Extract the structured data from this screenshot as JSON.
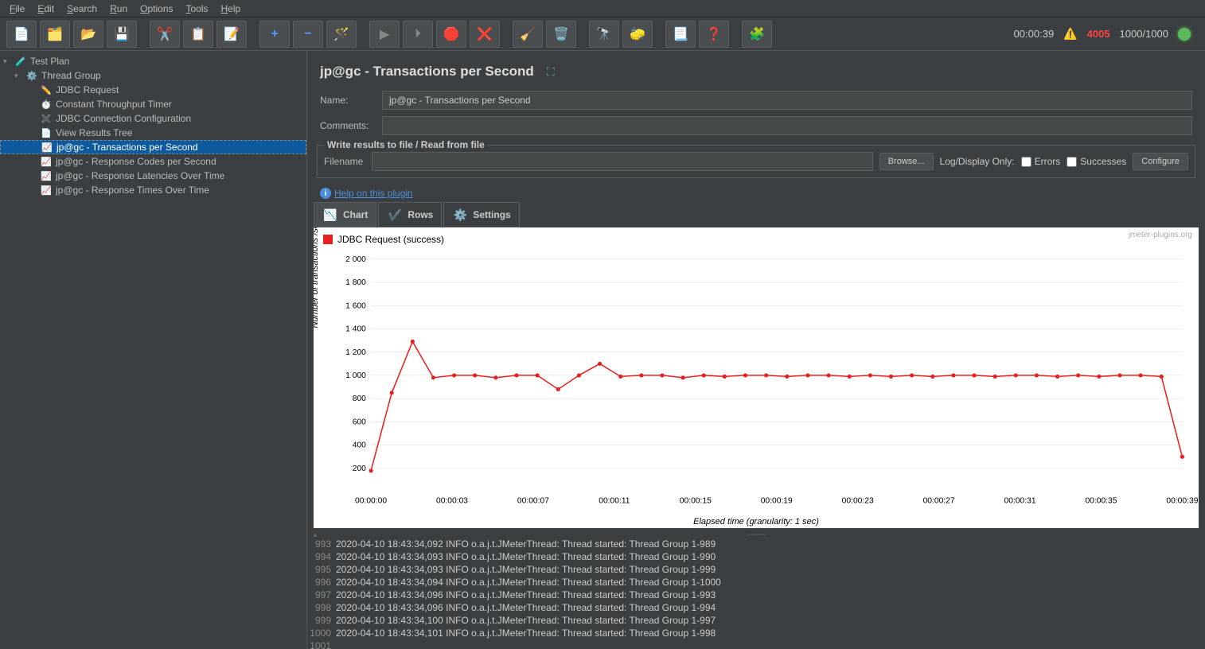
{
  "menu": [
    "File",
    "Edit",
    "Search",
    "Run",
    "Options",
    "Tools",
    "Help"
  ],
  "status": {
    "time": "00:00:39",
    "errors": "4005",
    "threads": "1000/1000"
  },
  "tree": [
    {
      "indent": 0,
      "label": "Test Plan",
      "icon": "🧪",
      "arrow": "▾"
    },
    {
      "indent": 1,
      "label": "Thread Group",
      "icon": "⚙️",
      "arrow": "▾"
    },
    {
      "indent": 2,
      "label": "JDBC Request",
      "icon": "✏️"
    },
    {
      "indent": 2,
      "label": "Constant Throughput Timer",
      "icon": "⏱️"
    },
    {
      "indent": 2,
      "label": "JDBC Connection Configuration",
      "icon": "✖️"
    },
    {
      "indent": 2,
      "label": "View Results Tree",
      "icon": "📄"
    },
    {
      "indent": 2,
      "label": "jp@gc - Transactions per Second",
      "icon": "📈",
      "selected": true
    },
    {
      "indent": 2,
      "label": "jp@gc - Response Codes per Second",
      "icon": "📈"
    },
    {
      "indent": 2,
      "label": "jp@gc - Response Latencies Over Time",
      "icon": "📈"
    },
    {
      "indent": 2,
      "label": "jp@gc - Response Times Over Time",
      "icon": "📈"
    }
  ],
  "panel": {
    "title": "jp@gc - Transactions per Second",
    "name_label": "Name:",
    "name_value": "jp@gc - Transactions per Second",
    "comments_label": "Comments:",
    "fieldset_legend": "Write results to file / Read from file",
    "filename_label": "Filename",
    "browse": "Browse...",
    "logdisplay": "Log/Display Only:",
    "errors_cb": "Errors",
    "success_cb": "Successes",
    "configure": "Configure",
    "help": "Help on this plugin"
  },
  "tabs": [
    {
      "label": "Chart",
      "icon": "📉",
      "active": true
    },
    {
      "label": "Rows",
      "icon": "✔️"
    },
    {
      "label": "Settings",
      "icon": "⚙️"
    }
  ],
  "chart": {
    "legend": "JDBC Request (success)",
    "attrib": "jmeter-plugins.org",
    "ylabel": "Number of transactions /sec",
    "xlabel": "Elapsed time (granularity: 1 sec)",
    "ymin": 0,
    "ymax": 2000,
    "ystep": 200,
    "yticks": [
      "2 000",
      "1 800",
      "1 600",
      "1 400",
      "1 200",
      "1 000",
      "800",
      "600",
      "400",
      "200"
    ],
    "xticks": [
      "00:00:00",
      "00:00:03",
      "00:00:07",
      "00:00:11",
      "00:00:15",
      "00:00:19",
      "00:00:23",
      "00:00:27",
      "00:00:31",
      "00:00:35",
      "00:00:39"
    ],
    "series_color": "#e62020",
    "data": [
      [
        0,
        180
      ],
      [
        1,
        850
      ],
      [
        2,
        1290
      ],
      [
        3,
        980
      ],
      [
        4,
        1000
      ],
      [
        5,
        1000
      ],
      [
        6,
        980
      ],
      [
        7,
        1000
      ],
      [
        8,
        1000
      ],
      [
        9,
        880
      ],
      [
        10,
        1000
      ],
      [
        11,
        1100
      ],
      [
        12,
        990
      ],
      [
        13,
        1000
      ],
      [
        14,
        1000
      ],
      [
        15,
        980
      ],
      [
        16,
        1000
      ],
      [
        17,
        990
      ],
      [
        18,
        1000
      ],
      [
        19,
        1000
      ],
      [
        20,
        990
      ],
      [
        21,
        1000
      ],
      [
        22,
        1000
      ],
      [
        23,
        990
      ],
      [
        24,
        1000
      ],
      [
        25,
        990
      ],
      [
        26,
        1000
      ],
      [
        27,
        990
      ],
      [
        28,
        1000
      ],
      [
        29,
        1000
      ],
      [
        30,
        990
      ],
      [
        31,
        1000
      ],
      [
        32,
        1000
      ],
      [
        33,
        990
      ],
      [
        34,
        1000
      ],
      [
        35,
        990
      ],
      [
        36,
        1000
      ],
      [
        37,
        1000
      ],
      [
        38,
        990
      ],
      [
        39,
        300
      ]
    ]
  },
  "log": {
    "start_line": 993,
    "lines": [
      "2020-04-10 18:43:34,092 INFO o.a.j.t.JMeterThread: Thread started: Thread Group 1-989",
      "2020-04-10 18:43:34,093 INFO o.a.j.t.JMeterThread: Thread started: Thread Group 1-990",
      "2020-04-10 18:43:34,093 INFO o.a.j.t.JMeterThread: Thread started: Thread Group 1-999",
      "2020-04-10 18:43:34,094 INFO o.a.j.t.JMeterThread: Thread started: Thread Group 1-1000",
      "2020-04-10 18:43:34,096 INFO o.a.j.t.JMeterThread: Thread started: Thread Group 1-993",
      "2020-04-10 18:43:34,096 INFO o.a.j.t.JMeterThread: Thread started: Thread Group 1-994",
      "2020-04-10 18:43:34,100 INFO o.a.j.t.JMeterThread: Thread started: Thread Group 1-997",
      "2020-04-10 18:43:34,101 INFO o.a.j.t.JMeterThread: Thread started: Thread Group 1-998",
      ""
    ]
  }
}
